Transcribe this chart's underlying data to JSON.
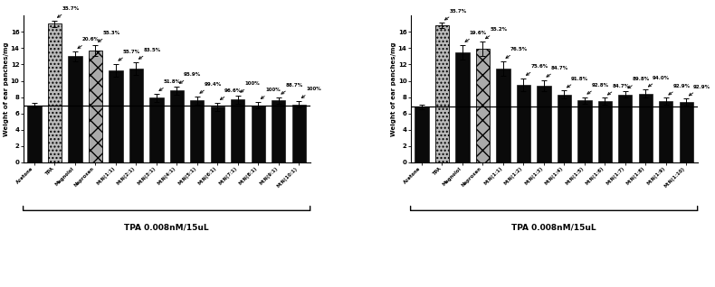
{
  "left": {
    "categories": [
      "Acetone",
      "TPA",
      "Magnolol",
      "Naproxen",
      "M:N(1:1)",
      "M:N(2:1)",
      "M:N(3:1)",
      "M:N(4:1)",
      "M:N(5:1)",
      "M:N(6:1)",
      "M:N(7:1)",
      "M:N(8:1)",
      "M:N(9:1)",
      "M:N(10:1)"
    ],
    "values": [
      7.0,
      17.0,
      13.0,
      13.7,
      11.3,
      11.5,
      7.9,
      8.8,
      7.6,
      6.8,
      7.7,
      7.0,
      7.6,
      7.1
    ],
    "errors": [
      0.3,
      0.4,
      0.6,
      0.7,
      0.8,
      0.8,
      0.5,
      0.5,
      0.5,
      0.5,
      0.5,
      0.4,
      0.4,
      0.4
    ],
    "percentages": [
      "",
      "35.7%",
      "20.6%",
      "55.3%",
      "55.7%",
      "83.5%",
      "51.8%",
      "95.9%",
      "99.4%",
      "96.6%",
      "100%",
      "100%",
      "88.7%",
      "100%"
    ],
    "bar_styles": [
      "solid_dark",
      "dotted_light",
      "solid_dark",
      "crosshatch",
      "solid_dark",
      "solid_dark",
      "solid_dark",
      "solid_dark",
      "solid_dark",
      "solid_dark",
      "solid_dark",
      "solid_dark",
      "solid_dark",
      "solid_dark"
    ],
    "xlabel": "TPA 0.008nM/15uL",
    "ylabel": "Weight of ear panches/mg",
    "ylim": [
      0,
      18
    ],
    "yticks": [
      0,
      2,
      4,
      6,
      8,
      10,
      12,
      14,
      16
    ],
    "hline": 7.0,
    "pct_xoffsets": [
      0,
      0.5,
      0.5,
      0.3,
      0.3,
      0.3,
      0.3,
      0.3,
      0.3,
      0.3,
      0.3,
      0.3,
      0.3,
      0.3
    ]
  },
  "right": {
    "categories": [
      "Acetone",
      "TPA",
      "Magnolol",
      "Naproxen",
      "M:N(1:1)",
      "M:N(1:2)",
      "M:N(1:3)",
      "M:N(1:4)",
      "M:N(1:5)",
      "M:N(1:6)",
      "M:N(1:7)",
      "M:N(1:8)",
      "M:N(1:9)",
      "M:N(1:10)"
    ],
    "values": [
      6.8,
      16.8,
      13.5,
      13.9,
      11.5,
      9.5,
      9.4,
      8.3,
      7.6,
      7.5,
      8.3,
      8.4,
      7.5,
      7.4
    ],
    "errors": [
      0.3,
      0.3,
      0.9,
      0.9,
      0.9,
      0.8,
      0.7,
      0.5,
      0.4,
      0.4,
      0.4,
      0.5,
      0.4,
      0.4
    ],
    "percentages": [
      "",
      "35.7%",
      "19.6%",
      "55.2%",
      "76.5%",
      "75.6%",
      "84.7%",
      "91.8%",
      "92.8%",
      "84.7%",
      "89.8%",
      "94.0%",
      "92.9%",
      "92.9%"
    ],
    "bar_styles": [
      "solid_dark",
      "dotted_light",
      "solid_dark",
      "crosshatch",
      "solid_dark",
      "solid_dark",
      "solid_dark",
      "solid_dark",
      "solid_dark",
      "solid_dark",
      "solid_dark",
      "solid_dark",
      "solid_dark",
      "solid_dark"
    ],
    "xlabel": "TPA 0.008nM/15uL",
    "ylabel": "Weight of ear panches/mg",
    "ylim": [
      0,
      18
    ],
    "yticks": [
      0,
      2,
      4,
      6,
      8,
      10,
      12,
      14,
      16
    ],
    "hline": 6.8,
    "pct_xoffsets": [
      0,
      0.5,
      0.5,
      0.3,
      0.3,
      0.3,
      0.3,
      0.3,
      0.3,
      0.3,
      0.3,
      0.3,
      0.3,
      0.3
    ]
  },
  "bg_color": "#ffffff",
  "bar_color_dark": "#0a0a0a",
  "bar_color_dotted_face": "#bbbbbb",
  "bar_color_cross_face": "#aaaaaa"
}
